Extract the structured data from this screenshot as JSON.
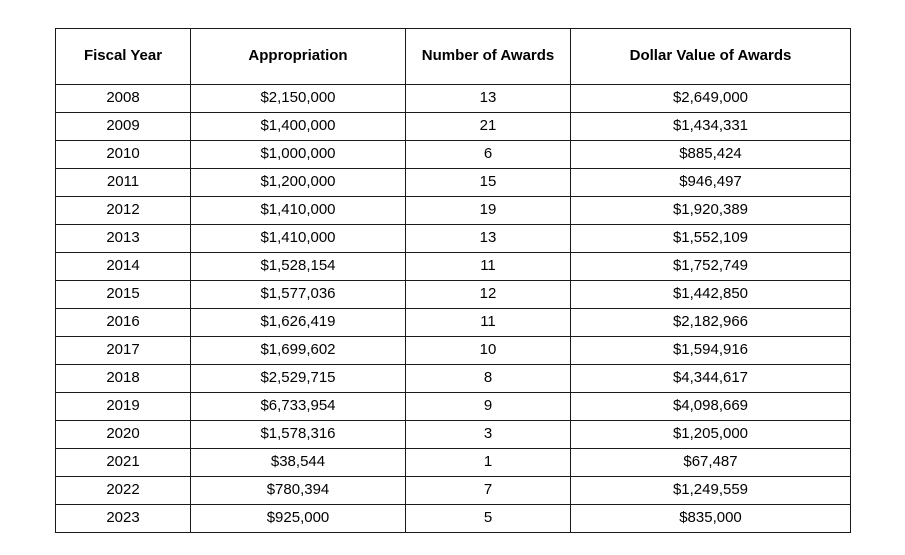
{
  "table": {
    "headers": [
      {
        "label": "Fiscal Year"
      },
      {
        "label": "Appropriation"
      },
      {
        "label": "Number of Awards"
      },
      {
        "label": "Dollar Value of Awards"
      }
    ],
    "rows": [
      {
        "fiscal_year": "2008",
        "appropriation": "$2,150,000",
        "number_of_awards": "13",
        "dollar_value_of_awards": "$2,649,000"
      },
      {
        "fiscal_year": "2009",
        "appropriation": "$1,400,000",
        "number_of_awards": "21",
        "dollar_value_of_awards": "$1,434,331"
      },
      {
        "fiscal_year": "2010",
        "appropriation": "$1,000,000",
        "number_of_awards": "6",
        "dollar_value_of_awards": "$885,424"
      },
      {
        "fiscal_year": "2011",
        "appropriation": "$1,200,000",
        "number_of_awards": "15",
        "dollar_value_of_awards": "$946,497"
      },
      {
        "fiscal_year": "2012",
        "appropriation": "$1,410,000",
        "number_of_awards": "19",
        "dollar_value_of_awards": "$1,920,389"
      },
      {
        "fiscal_year": "2013",
        "appropriation": "$1,410,000",
        "number_of_awards": "13",
        "dollar_value_of_awards": "$1,552,109"
      },
      {
        "fiscal_year": "2014",
        "appropriation": "$1,528,154",
        "number_of_awards": "11",
        "dollar_value_of_awards": "$1,752,749"
      },
      {
        "fiscal_year": "2015",
        "appropriation": "$1,577,036",
        "number_of_awards": "12",
        "dollar_value_of_awards": "$1,442,850"
      },
      {
        "fiscal_year": "2016",
        "appropriation": "$1,626,419",
        "number_of_awards": "11",
        "dollar_value_of_awards": "$2,182,966"
      },
      {
        "fiscal_year": "2017",
        "appropriation": "$1,699,602",
        "number_of_awards": "10",
        "dollar_value_of_awards": "$1,594,916"
      },
      {
        "fiscal_year": "2018",
        "appropriation": "$2,529,715",
        "number_of_awards": "8",
        "dollar_value_of_awards": "$4,344,617"
      },
      {
        "fiscal_year": "2019",
        "appropriation": "$6,733,954",
        "number_of_awards": "9",
        "dollar_value_of_awards": "$4,098,669"
      },
      {
        "fiscal_year": "2020",
        "appropriation": "$1,578,316",
        "number_of_awards": "3",
        "dollar_value_of_awards": "$1,205,000"
      },
      {
        "fiscal_year": "2021",
        "appropriation": "$38,544",
        "number_of_awards": "1",
        "dollar_value_of_awards": "$67,487"
      },
      {
        "fiscal_year": "2022",
        "appropriation": "$780,394",
        "number_of_awards": "7",
        "dollar_value_of_awards": "$1,249,559"
      },
      {
        "fiscal_year": "2023",
        "appropriation": "$925,000",
        "number_of_awards": "5",
        "dollar_value_of_awards": "$835,000"
      }
    ],
    "row_field_order": [
      "fiscal_year",
      "appropriation",
      "number_of_awards",
      "dollar_value_of_awards"
    ]
  },
  "chart_data": {
    "type": "table",
    "title": "",
    "columns": [
      "Fiscal Year",
      "Appropriation",
      "Number of Awards",
      "Dollar Value of Awards"
    ],
    "fiscal_years": [
      2008,
      2009,
      2010,
      2011,
      2012,
      2013,
      2014,
      2015,
      2016,
      2017,
      2018,
      2019,
      2020,
      2021,
      2022,
      2023
    ],
    "appropriation": [
      2150000,
      1400000,
      1000000,
      1200000,
      1410000,
      1410000,
      1528154,
      1577036,
      1626419,
      1699602,
      2529715,
      6733954,
      1578316,
      38544,
      780394,
      925000
    ],
    "number_of_awards": [
      13,
      21,
      6,
      15,
      19,
      13,
      11,
      12,
      11,
      10,
      8,
      9,
      3,
      1,
      7,
      5
    ],
    "dollar_value_of_awards": [
      2649000,
      1434331,
      885424,
      946497,
      1920389,
      1552109,
      1752749,
      1442850,
      2182966,
      1594916,
      4344617,
      4098669,
      1205000,
      67487,
      1249559,
      835000
    ]
  }
}
